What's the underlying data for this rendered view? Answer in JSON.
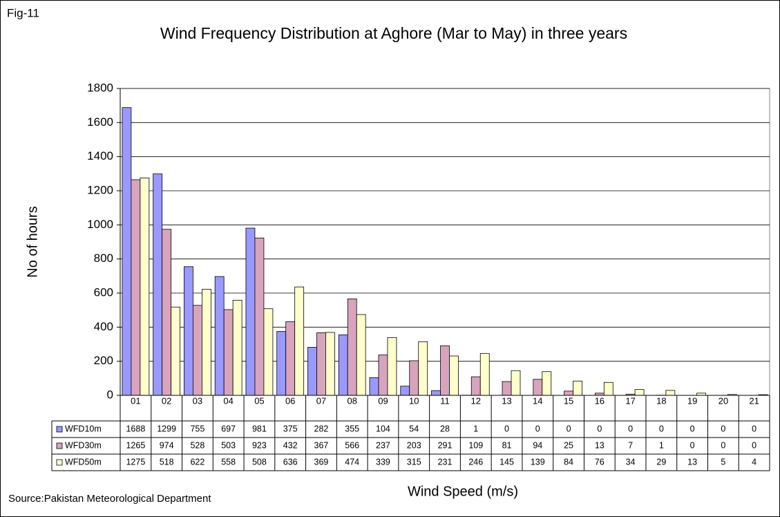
{
  "chart_data": {
    "type": "bar",
    "figure_label": "Fig-11",
    "title": "Wind Frequency Distribution at Aghore (Mar to May) in three years",
    "y_label": "No of hours",
    "x_label": "Wind Speed (m/s)",
    "source": "Source:Pakistan Meteorological Department",
    "categories": [
      "01",
      "02",
      "03",
      "04",
      "05",
      "06",
      "07",
      "08",
      "09",
      "10",
      "11",
      "12",
      "13",
      "14",
      "15",
      "16",
      "17",
      "18",
      "19",
      "20",
      "21"
    ],
    "series": [
      {
        "name": "WFD10m",
        "color": "#9999ff",
        "values": [
          1688,
          1299,
          755,
          697,
          981,
          375,
          282,
          355,
          104,
          54,
          28,
          1,
          0,
          0,
          0,
          0,
          0,
          0,
          0,
          0,
          0
        ]
      },
      {
        "name": "WFD30m",
        "color": "#d8a3bd",
        "values": [
          1265,
          974,
          528,
          503,
          923,
          432,
          367,
          566,
          237,
          203,
          291,
          109,
          81,
          94,
          25,
          13,
          7,
          1,
          0,
          0,
          0
        ]
      },
      {
        "name": "WFD50m",
        "color": "#ffffcc",
        "values": [
          1275,
          518,
          622,
          558,
          508,
          636,
          369,
          474,
          339,
          315,
          231,
          246,
          145,
          139,
          84,
          76,
          34,
          29,
          13,
          5,
          4
        ]
      }
    ],
    "ylim": [
      0,
      1800
    ],
    "yticks": [
      0,
      200,
      400,
      600,
      800,
      1000,
      1200,
      1400,
      1600,
      1800
    ],
    "grid": true
  }
}
